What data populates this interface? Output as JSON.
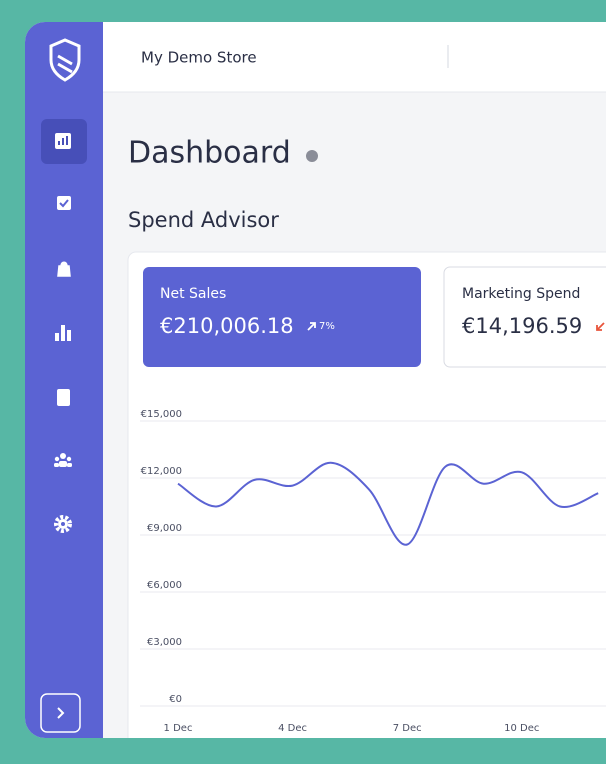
{
  "header": {
    "store_name": "My Demo Store"
  },
  "page": {
    "title": "Dashboard",
    "section": "Spend Advisor"
  },
  "cards": [
    {
      "label": "Net Sales",
      "value": "€210,006.18",
      "change": "7%"
    },
    {
      "label": "Marketing Spend",
      "value": "€14,196.59"
    }
  ],
  "chart_data": {
    "type": "line",
    "categories": [
      "1 Dec",
      null,
      null,
      "4 Dec",
      null,
      null,
      "7 Dec",
      null,
      null,
      "10 Dec",
      null,
      null
    ],
    "values": [
      11700,
      10500,
      11900,
      11600,
      12800,
      11400,
      8500,
      12600,
      11700,
      12300,
      10500,
      11200
    ],
    "color": "#5b63d3",
    "ylim": [
      0,
      15000
    ],
    "yticks": [
      {
        "value": 0,
        "label": "€0"
      },
      {
        "value": 3000,
        "label": "€3,000"
      },
      {
        "value": 6000,
        "label": "€6,000"
      },
      {
        "value": 9000,
        "label": "€9,000"
      },
      {
        "value": 12000,
        "label": "€12,000"
      },
      {
        "value": 15000,
        "label": "€15,000"
      }
    ],
    "grid": true
  }
}
